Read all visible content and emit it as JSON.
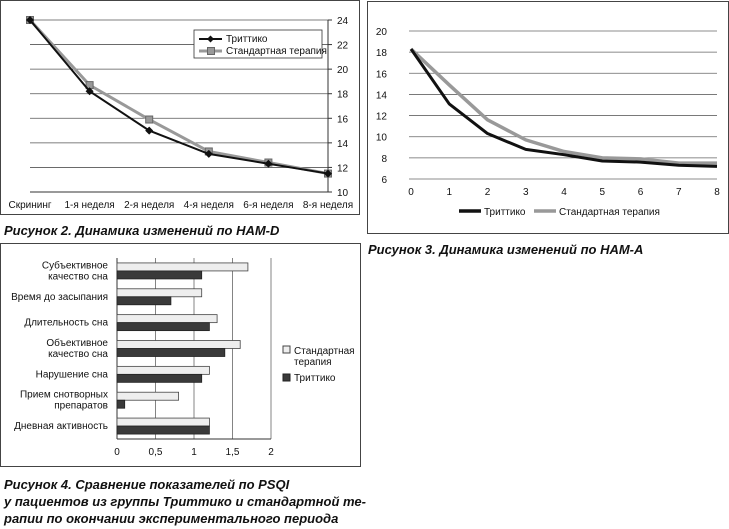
{
  "figures": {
    "fig2": {
      "caption": "Рисунок 2. Динамика изменений по HAM-D"
    },
    "fig3": {
      "caption": "Рисунок 3. Динамика изменений по HAM-A"
    },
    "fig4": {
      "caption_lines": [
        "Рисунок 4. Сравнение показателей по PSQI",
        "у пациентов из группы Триттико и стандартной те-",
        "рапии по окончании экспериментального периода"
      ]
    }
  },
  "colors": {
    "trittico": "#111111",
    "standard": "#999999",
    "standard_bar": "#eeeeee",
    "trittico_bar": "#3a3a3a"
  },
  "chart_data": [
    {
      "id": "fig2",
      "type": "line",
      "categories": [
        "Скрининг",
        "1-я неделя",
        "2-я неделя",
        "4-я неделя",
        "6-я неделя",
        "8-я неделя"
      ],
      "ylim": [
        10,
        24
      ],
      "yticks": [
        "24",
        "22",
        "20",
        "18",
        "16",
        "14",
        "12",
        "10"
      ],
      "y_axis_side": "right",
      "grid": true,
      "legend_position": "top-right",
      "series": [
        {
          "name": "Триттико",
          "values": [
            24,
            18.2,
            15,
            13.1,
            12.3,
            11.5
          ],
          "marker": "diamond"
        },
        {
          "name": "Стандартная терапия",
          "values": [
            24,
            18.7,
            15.9,
            13.3,
            12.4,
            11.5
          ],
          "marker": "square"
        }
      ]
    },
    {
      "id": "fig3",
      "type": "line",
      "x": [
        0,
        1,
        2,
        3,
        4,
        5,
        6,
        7,
        8
      ],
      "xticks": [
        "0",
        "1",
        "2",
        "3",
        "4",
        "5",
        "6",
        "7",
        "8"
      ],
      "ylim": [
        6,
        20
      ],
      "yticks": [
        "20",
        "18",
        "16",
        "14",
        "12",
        "10",
        "8",
        "6"
      ],
      "grid": true,
      "legend_position": "bottom",
      "series": [
        {
          "name": "Триттико",
          "values": [
            18.3,
            13.1,
            10.3,
            8.8,
            8.3,
            7.7,
            7.6,
            7.3,
            7.2
          ]
        },
        {
          "name": "Стандартная терапия",
          "values": [
            18.3,
            14.9,
            11.6,
            9.7,
            8.6,
            8.0,
            7.9,
            7.5,
            7.5
          ]
        }
      ]
    },
    {
      "id": "fig4",
      "type": "bar",
      "orientation": "horizontal",
      "categories": [
        [
          "Субъективное",
          "качество сна"
        ],
        [
          "Время до засыпания"
        ],
        [
          "Длительность сна"
        ],
        [
          "Объективное",
          "качество сна"
        ],
        [
          "Нарушение сна"
        ],
        [
          "Прием снотворных",
          "препаратов"
        ],
        [
          "Дневная активность"
        ]
      ],
      "xlim": [
        0,
        2
      ],
      "xticks": [
        "0",
        "0,5",
        "1",
        "1,5",
        "2"
      ],
      "grid": true,
      "legend_position": "right",
      "series": [
        {
          "name": "Стандартная терапия",
          "legend_lines": [
            "Стандартная",
            "терапия"
          ],
          "values": [
            1.7,
            1.1,
            1.3,
            1.6,
            1.2,
            0.8,
            1.2
          ]
        },
        {
          "name": "Триттико",
          "legend_lines": [
            "Триттико"
          ],
          "values": [
            1.1,
            0.7,
            1.2,
            1.4,
            1.1,
            0.1,
            1.2
          ]
        }
      ]
    }
  ]
}
